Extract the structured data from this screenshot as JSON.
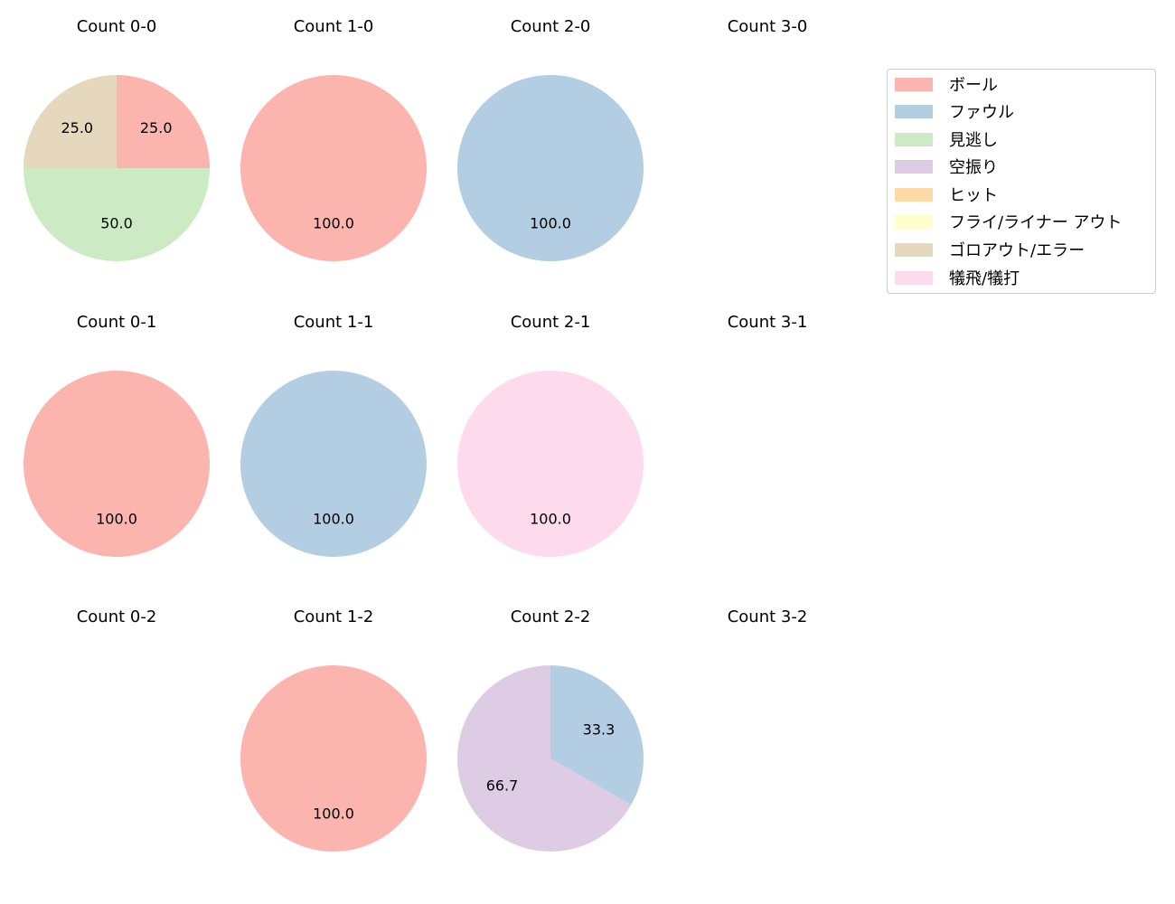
{
  "chart_data": {
    "type": "pie",
    "title": "",
    "legend": {
      "position": "upper right",
      "entries": [
        {
          "label": "ボール",
          "color": "#fbb4ae"
        },
        {
          "label": "ファウル",
          "color": "#b3cde3"
        },
        {
          "label": "見逃し",
          "color": "#ccebc5"
        },
        {
          "label": "空振り",
          "color": "#decbe4"
        },
        {
          "label": "ヒット",
          "color": "#fed9a6"
        },
        {
          "label": "フライ/ライナー アウト",
          "color": "#ffffcc"
        },
        {
          "label": "ゴロアウト/エラー",
          "color": "#e5d8bd"
        },
        {
          "label": "犠飛/犠打",
          "color": "#fddaec"
        }
      ]
    },
    "subplots": [
      {
        "title": "Count 0-0",
        "row": 0,
        "col": 0,
        "slices": [
          {
            "category": "ボール",
            "value": 25.0
          },
          {
            "category": "見逃し",
            "value": 50.0
          },
          {
            "category": "ゴロアウト/エラー",
            "value": 25.0
          }
        ]
      },
      {
        "title": "Count 1-0",
        "row": 0,
        "col": 1,
        "slices": [
          {
            "category": "ボール",
            "value": 100.0
          }
        ]
      },
      {
        "title": "Count 2-0",
        "row": 0,
        "col": 2,
        "slices": [
          {
            "category": "ファウル",
            "value": 100.0
          }
        ]
      },
      {
        "title": "Count 3-0",
        "row": 0,
        "col": 3,
        "slices": []
      },
      {
        "title": "Count 0-1",
        "row": 1,
        "col": 0,
        "slices": [
          {
            "category": "ボール",
            "value": 100.0
          }
        ]
      },
      {
        "title": "Count 1-1",
        "row": 1,
        "col": 1,
        "slices": [
          {
            "category": "ファウル",
            "value": 100.0
          }
        ]
      },
      {
        "title": "Count 2-1",
        "row": 1,
        "col": 2,
        "slices": [
          {
            "category": "犠飛/犠打",
            "value": 100.0
          }
        ]
      },
      {
        "title": "Count 3-1",
        "row": 1,
        "col": 3,
        "slices": []
      },
      {
        "title": "Count 0-2",
        "row": 2,
        "col": 0,
        "slices": []
      },
      {
        "title": "Count 1-2",
        "row": 2,
        "col": 1,
        "slices": [
          {
            "category": "ボール",
            "value": 100.0
          }
        ]
      },
      {
        "title": "Count 2-2",
        "row": 2,
        "col": 2,
        "slices": [
          {
            "category": "ファウル",
            "value": 33.3
          },
          {
            "category": "空振り",
            "value": 66.7
          }
        ]
      },
      {
        "title": "Count 3-2",
        "row": 2,
        "col": 3,
        "slices": []
      }
    ]
  }
}
